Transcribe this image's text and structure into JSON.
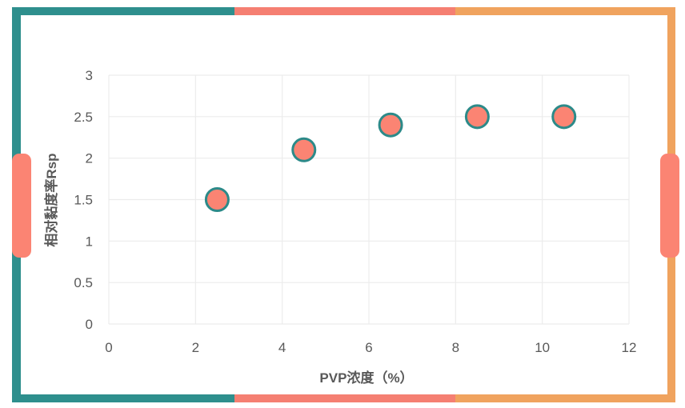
{
  "colors": {
    "teal": "#2e8f8d",
    "salmon": "#f57f72",
    "orange": "#f0a35e",
    "grid": "#ececec",
    "tick_text": "#595959",
    "label_text": "#595959",
    "marker_fill": "#fb8473",
    "marker_stroke": "#2c8a89"
  },
  "chart_data": {
    "type": "scatter",
    "title": "",
    "xlabel": "PVP浓度（%）",
    "ylabel": "相对黏度率Rsp",
    "xlim": [
      0,
      12
    ],
    "ylim": [
      0,
      3
    ],
    "x_ticks": [
      "0",
      "2",
      "4",
      "6",
      "8",
      "10",
      "12"
    ],
    "y_ticks": [
      "0",
      "0.5",
      "1",
      "1.5",
      "2",
      "2.5",
      "3"
    ],
    "grid": true,
    "series": [
      {
        "x": [
          2.5,
          4.5,
          6.5,
          8.5,
          10.5
        ],
        "y": [
          1.5,
          2.1,
          2.4,
          2.5,
          2.5
        ]
      }
    ]
  }
}
